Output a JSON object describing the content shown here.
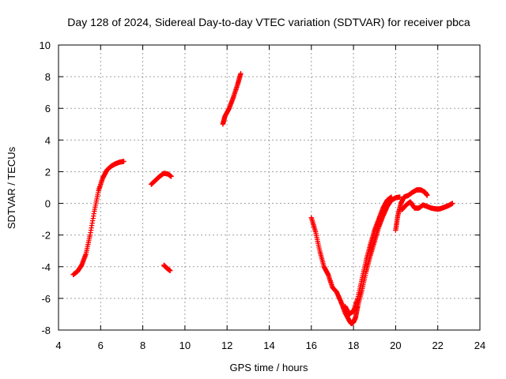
{
  "chart_data": {
    "type": "scatter",
    "title": "Day 128 of 2024, Sidereal Day-to-day VTEC variation (SDTVAR) for receiver pbca",
    "xlabel": "GPS time / hours",
    "ylabel": "SDTVAR / TECUs",
    "xlim": [
      4,
      24
    ],
    "ylim": [
      -8,
      10
    ],
    "xticks": [
      4,
      6,
      8,
      10,
      12,
      14,
      16,
      18,
      20,
      22,
      24
    ],
    "yticks": [
      -8,
      -6,
      -4,
      -2,
      0,
      2,
      4,
      6,
      8,
      10
    ],
    "grid": true,
    "marker": "plus",
    "color": "#ff0000",
    "series": [
      {
        "name": "segment-1",
        "points": [
          [
            4.7,
            -4.5
          ],
          [
            4.9,
            -4.3
          ],
          [
            5.1,
            -3.9
          ],
          [
            5.3,
            -3.2
          ],
          [
            5.5,
            -2.0
          ],
          [
            5.7,
            -0.5
          ],
          [
            5.9,
            0.8
          ],
          [
            6.1,
            1.6
          ],
          [
            6.3,
            2.1
          ],
          [
            6.5,
            2.35
          ],
          [
            6.7,
            2.5
          ],
          [
            6.9,
            2.6
          ],
          [
            7.1,
            2.65
          ]
        ]
      },
      {
        "name": "segment-2",
        "points": [
          [
            8.4,
            1.2
          ],
          [
            8.6,
            1.45
          ],
          [
            8.8,
            1.7
          ],
          [
            9.0,
            1.9
          ],
          [
            9.2,
            1.85
          ],
          [
            9.35,
            1.7
          ]
        ]
      },
      {
        "name": "segment-3",
        "points": [
          [
            9.0,
            -3.9
          ],
          [
            9.15,
            -4.1
          ],
          [
            9.3,
            -4.25
          ]
        ]
      },
      {
        "name": "segment-4",
        "points": [
          [
            11.8,
            5.0
          ],
          [
            11.9,
            5.5
          ],
          [
            12.1,
            6.0
          ],
          [
            12.3,
            6.7
          ],
          [
            12.5,
            7.5
          ],
          [
            12.65,
            8.2
          ]
        ]
      },
      {
        "name": "segment-5",
        "points": [
          [
            16.0,
            -0.9
          ],
          [
            16.2,
            -1.8
          ],
          [
            16.4,
            -3.0
          ],
          [
            16.6,
            -4.0
          ],
          [
            16.8,
            -4.5
          ],
          [
            17.0,
            -5.3
          ],
          [
            17.2,
            -5.6
          ],
          [
            17.4,
            -6.2
          ],
          [
            17.6,
            -6.9
          ],
          [
            17.8,
            -7.4
          ],
          [
            17.9,
            -7.6
          ],
          [
            18.0,
            -7.5
          ],
          [
            18.1,
            -7.2
          ],
          [
            18.2,
            -6.5
          ],
          [
            18.4,
            -5.5
          ],
          [
            18.6,
            -4.3
          ],
          [
            18.8,
            -3.3
          ],
          [
            19.0,
            -2.4
          ],
          [
            19.2,
            -1.5
          ],
          [
            19.4,
            -0.8
          ],
          [
            19.6,
            -0.2
          ],
          [
            19.8,
            0.2
          ],
          [
            20.0,
            0.35
          ],
          [
            20.2,
            0.4
          ]
        ]
      },
      {
        "name": "segment-6",
        "points": [
          [
            17.6,
            -6.5
          ],
          [
            17.8,
            -7.0
          ],
          [
            18.0,
            -6.8
          ],
          [
            18.2,
            -6.0
          ],
          [
            18.4,
            -4.8
          ],
          [
            18.6,
            -3.6
          ],
          [
            18.8,
            -2.6
          ],
          [
            19.0,
            -1.7
          ],
          [
            19.2,
            -1.0
          ],
          [
            19.4,
            -0.3
          ],
          [
            19.6,
            0.2
          ],
          [
            19.8,
            0.4
          ]
        ]
      },
      {
        "name": "segment-7",
        "points": [
          [
            20.0,
            -1.7
          ],
          [
            20.1,
            -0.8
          ],
          [
            20.25,
            0.0
          ],
          [
            20.4,
            0.4
          ],
          [
            20.6,
            0.5
          ],
          [
            20.8,
            0.7
          ],
          [
            21.0,
            0.85
          ],
          [
            21.2,
            0.85
          ],
          [
            21.4,
            0.7
          ],
          [
            21.5,
            0.5
          ]
        ]
      },
      {
        "name": "segment-8",
        "points": [
          [
            20.3,
            -0.4
          ],
          [
            20.5,
            -0.1
          ],
          [
            20.7,
            0.1
          ],
          [
            20.9,
            -0.3
          ],
          [
            21.1,
            -0.3
          ],
          [
            21.3,
            -0.1
          ],
          [
            21.5,
            -0.2
          ],
          [
            21.7,
            -0.3
          ],
          [
            21.9,
            -0.35
          ],
          [
            22.1,
            -0.35
          ],
          [
            22.3,
            -0.25
          ],
          [
            22.5,
            -0.15
          ],
          [
            22.7,
            0.0
          ]
        ]
      }
    ]
  }
}
